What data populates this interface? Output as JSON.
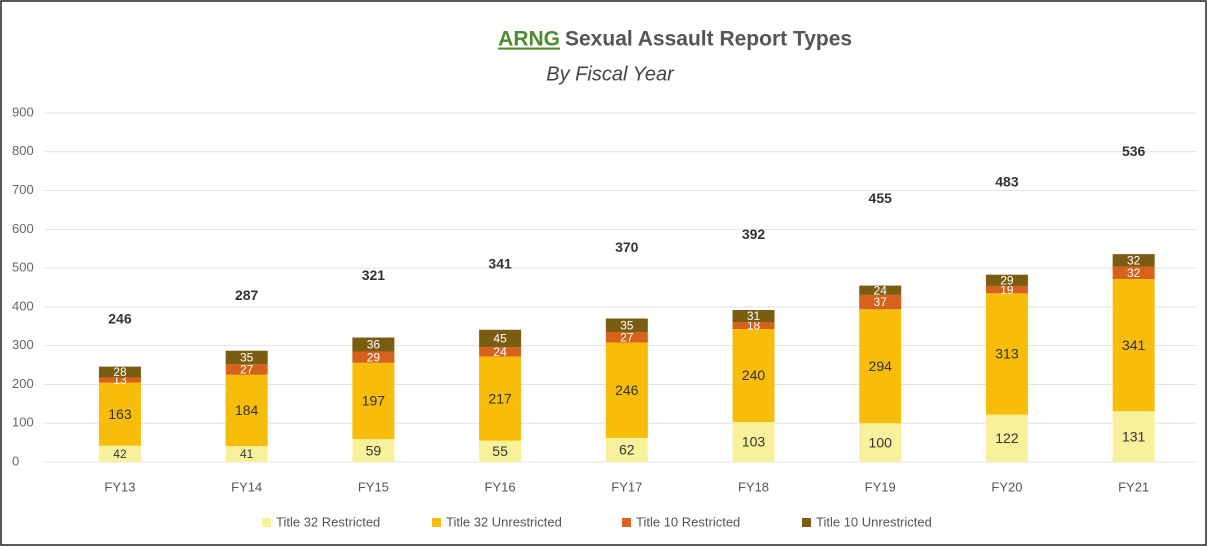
{
  "chart_data": {
    "type": "stacked_bar",
    "title_highlight": "ARNG",
    "title": "Sexual Assault Report Types",
    "subtitle": "By Fiscal Year",
    "categories": [
      "FY13",
      "FY14",
      "FY15",
      "FY16",
      "FY17",
      "FY18",
      "FY19",
      "FY20",
      "FY21"
    ],
    "series": [
      {
        "name": "Title 32 Restricted",
        "color": "#f8f19c",
        "values": [
          42,
          41,
          59,
          55,
          62,
          103,
          100,
          122,
          131
        ]
      },
      {
        "name": "Title 32 Unrestricted",
        "color": "#f7bd0a",
        "values": [
          163,
          184,
          197,
          217,
          246,
          240,
          294,
          313,
          341
        ]
      },
      {
        "name": "Title 10 Restricted",
        "color": "#d6621c",
        "values": [
          13,
          27,
          29,
          24,
          27,
          18,
          37,
          19,
          32
        ]
      },
      {
        "name": "Title 10 Unrestricted",
        "color": "#7b5d12",
        "values": [
          28,
          35,
          36,
          45,
          35,
          31,
          24,
          29,
          32
        ]
      }
    ],
    "totals": [
      246,
      287,
      321,
      341,
      370,
      392,
      455,
      483,
      536
    ],
    "ylim": [
      0,
      900
    ],
    "yticks": [
      0,
      100,
      200,
      300,
      400,
      500,
      600,
      700,
      800,
      900
    ],
    "grid": true,
    "legend": "bottom"
  }
}
